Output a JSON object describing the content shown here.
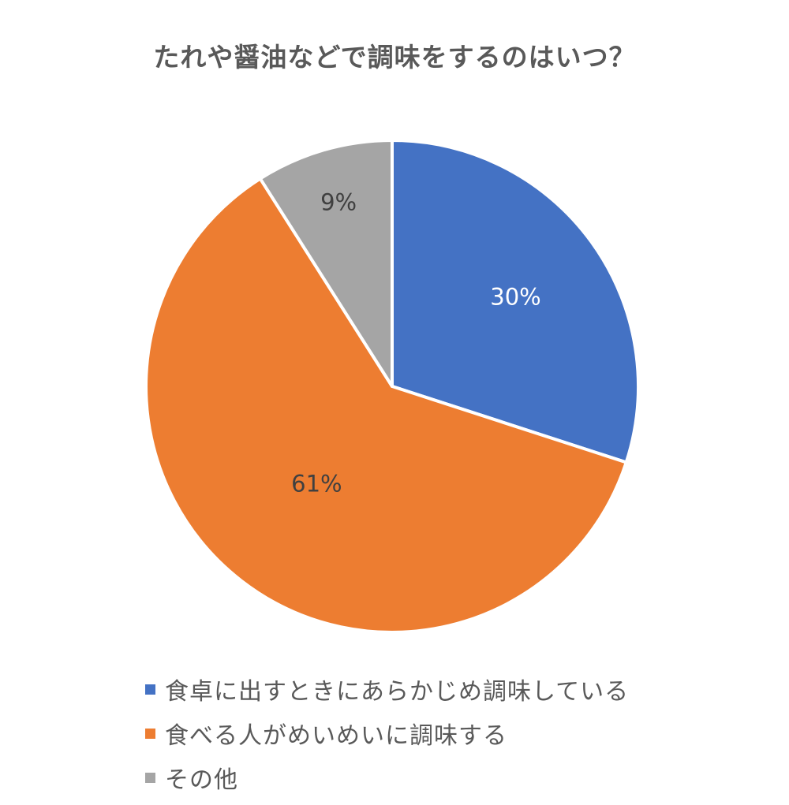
{
  "chart_data": {
    "type": "pie",
    "title": "たれや醤油などで調味をするのはいつ？",
    "categories": [
      "食卓に出すときにあらかじめ調味している",
      "食べる人がめいめいに調味する",
      "その他"
    ],
    "values": [
      30,
      61,
      9
    ],
    "data_labels": [
      "30%",
      "61%",
      "9%"
    ],
    "colors": [
      "#4472c4",
      "#ed7d31",
      "#a5a5a5"
    ],
    "label_colors": [
      "#ffffff",
      "#404040",
      "#404040"
    ],
    "start_angle_deg": 0,
    "direction": "clockwise",
    "legend_position": "bottom"
  }
}
